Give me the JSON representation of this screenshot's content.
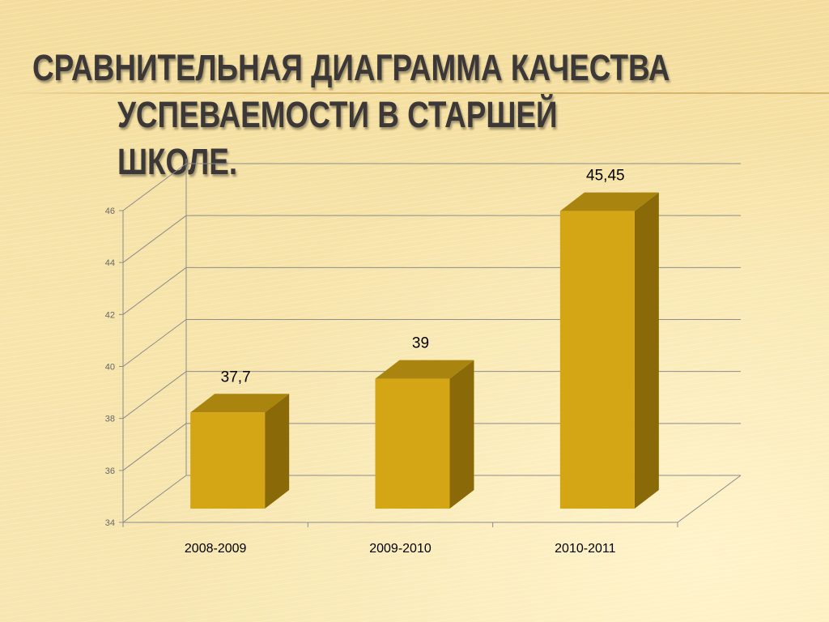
{
  "slide": {
    "title_line1": "Сравнительная диаграмма качества",
    "title_line2": "успеваемости в старшей школе."
  },
  "chart_data": {
    "type": "bar",
    "categories": [
      "2008-2009",
      "2009-2010",
      "2010-2011"
    ],
    "values": [
      37.7,
      39,
      45.45
    ],
    "data_labels": [
      "37,7",
      "39",
      "45,45"
    ],
    "yticks": [
      "34",
      "36",
      "38",
      "40",
      "42",
      "44",
      "46"
    ],
    "ylim": [
      34,
      46
    ],
    "grid": true,
    "legend": "none",
    "colors": {
      "bar_front": "#d4a514",
      "bar_side": "#8a6a08",
      "bar_top": "#a98510"
    }
  }
}
